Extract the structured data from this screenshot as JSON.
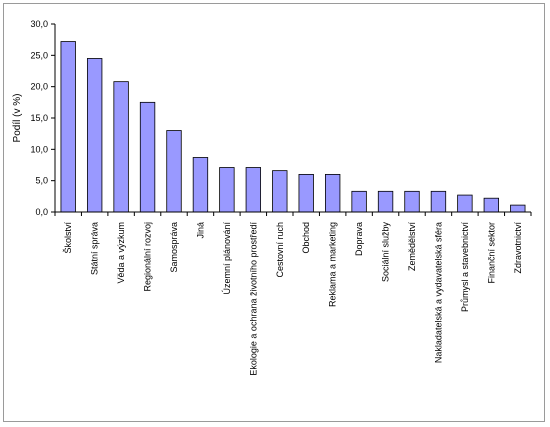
{
  "chart_data": {
    "type": "bar",
    "ylabel": "Podíl (v %)",
    "xlabel": "",
    "title": "",
    "ylim": [
      0,
      30
    ],
    "y_ticks": [
      "0,0",
      "5,0",
      "10,0",
      "15,0",
      "20,0",
      "25,0",
      "30,0"
    ],
    "grid": false,
    "bar_color": "#9999ff",
    "categories": [
      "Školství",
      "Státní správa",
      "Věda a výzkum",
      "Regionální rozvoj",
      "Samospráva",
      "Jiná",
      "Územní plánování",
      "Ekologie a ochrana životního prostředí",
      "Cestovní ruch",
      "Obchod",
      "Reklama a marketing",
      "Doprava",
      "Sociální služby",
      "Zemědělství",
      "Nakladatelská a vydavatelská sféra",
      "Průmysl a stavebnictví",
      "Finanční sektor",
      "Zdravotnictví"
    ],
    "values": [
      27.2,
      24.5,
      20.8,
      17.5,
      13.0,
      8.7,
      7.1,
      7.1,
      6.6,
      6.0,
      6.0,
      3.3,
      3.3,
      3.3,
      3.3,
      2.7,
      2.2,
      1.1
    ]
  }
}
